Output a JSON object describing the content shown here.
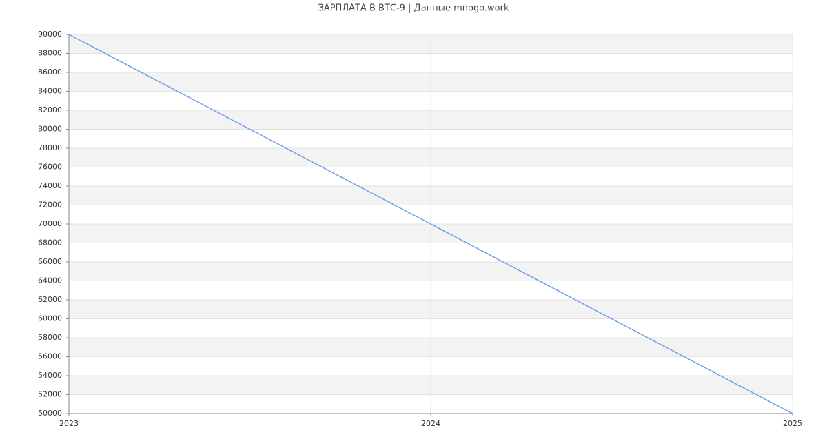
{
  "chart_data": {
    "type": "line",
    "title": "ЗАРПЛАТА В ВТС-9 | Данные mnogo.work",
    "x": [
      2023,
      2024,
      2025
    ],
    "values": [
      90000,
      70000,
      50000
    ],
    "color": "#6d9eeb",
    "xlim": [
      2023,
      2025
    ],
    "xticks": [
      2023,
      2024,
      2025
    ],
    "ylim": [
      50000,
      90000
    ],
    "yticks": [
      50000,
      52000,
      54000,
      56000,
      58000,
      60000,
      62000,
      64000,
      66000,
      68000,
      70000,
      72000,
      74000,
      76000,
      78000,
      80000,
      82000,
      84000,
      86000,
      88000,
      90000
    ],
    "grid": true
  }
}
